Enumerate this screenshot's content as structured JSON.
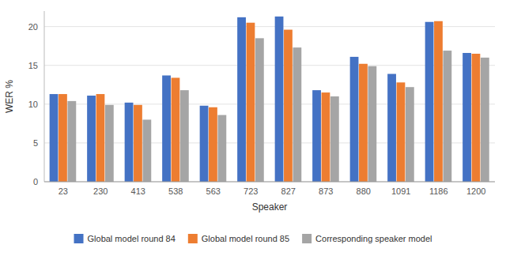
{
  "chart_data": {
    "type": "bar",
    "xlabel": "Speaker",
    "ylabel": "WER %",
    "categories": [
      "23",
      "230",
      "413",
      "538",
      "563",
      "723",
      "827",
      "873",
      "880",
      "1091",
      "1186",
      "1200"
    ],
    "series": [
      {
        "name": "Global model round 84",
        "color": "#4472C4",
        "values": [
          11.3,
          11.1,
          10.2,
          13.7,
          9.8,
          21.2,
          21.3,
          11.8,
          16.1,
          13.9,
          20.6,
          16.6
        ]
      },
      {
        "name": "Global model round 85",
        "color": "#ED7D31",
        "values": [
          11.3,
          11.3,
          9.9,
          13.4,
          9.6,
          20.5,
          19.6,
          11.5,
          15.2,
          12.8,
          20.7,
          16.5
        ]
      },
      {
        "name": "Corresponding speaker model",
        "color": "#A5A5A5",
        "values": [
          10.4,
          9.9,
          8.0,
          11.8,
          8.6,
          18.5,
          17.3,
          11.0,
          14.9,
          12.2,
          16.9,
          16.0
        ]
      }
    ],
    "ylim": [
      0,
      22
    ],
    "yticks": [
      0,
      5,
      10,
      15,
      20
    ],
    "grid": true,
    "legend": "bottom"
  }
}
